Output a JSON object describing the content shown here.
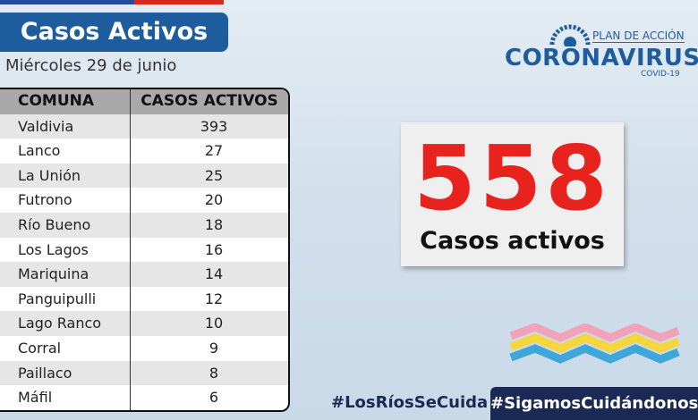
{
  "header": {
    "title": "Casos Activos",
    "date": "Miércoles 29 de junio"
  },
  "logo": {
    "plan": "PLAN DE ACCIÓN",
    "name": "CORONAVIRUS",
    "sub": "COVID-19"
  },
  "table": {
    "columns": [
      "COMUNA",
      "CASOS ACTIVOS"
    ],
    "rows": [
      [
        "Valdivia",
        393
      ],
      [
        "Lanco",
        27
      ],
      [
        "La Unión",
        25
      ],
      [
        "Futrono",
        20
      ],
      [
        "Río Bueno",
        18
      ],
      [
        "Los Lagos",
        16
      ],
      [
        "Mariquina",
        14
      ],
      [
        "Panguipulli",
        12
      ],
      [
        "Lago Ranco",
        10
      ],
      [
        "Corral",
        9
      ],
      [
        "Paillaco",
        8
      ],
      [
        "Máfil",
        6
      ]
    ]
  },
  "total": {
    "value": 558,
    "label": "Casos activos"
  },
  "hashtags": [
    "#LosRíosSeCuida",
    "#SigamosCuidándonos"
  ]
}
